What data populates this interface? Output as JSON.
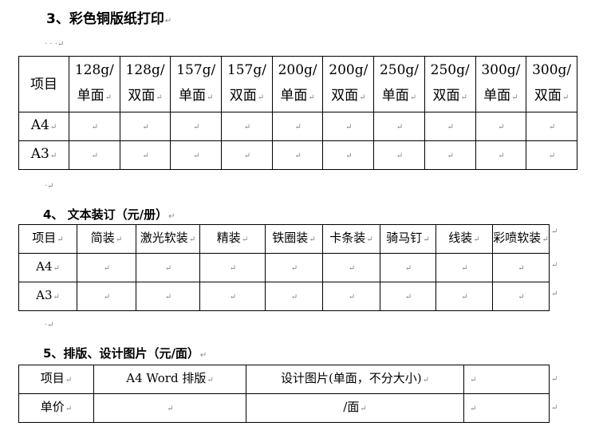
{
  "section3": {
    "heading": "3、彩色铜版纸打印",
    "columns": [
      {
        "weight": "128g/",
        "side": "单面"
      },
      {
        "weight": "128g/",
        "side": "双面"
      },
      {
        "weight": "157g/",
        "side": "单面"
      },
      {
        "weight": "157g/",
        "side": "双面"
      },
      {
        "weight": "200g/",
        "side": "单面"
      },
      {
        "weight": "200g/",
        "side": "双面"
      },
      {
        "weight": "250g/",
        "side": "单面"
      },
      {
        "weight": "250g/",
        "side": "双面"
      },
      {
        "weight": "300g/",
        "side": "单面"
      },
      {
        "weight": "300g/",
        "side": "双面"
      }
    ],
    "header_label": "项目",
    "rows": [
      "A4",
      "A3"
    ]
  },
  "section4": {
    "heading": "4、 文本装订（元/册）",
    "header_label": "项目",
    "columns": [
      "简装",
      "激光软装",
      "精装",
      "铁圈装",
      "卡条装",
      "骑马钉",
      "线装",
      "彩喷软装"
    ],
    "rows": [
      "A4",
      "A3"
    ]
  },
  "section5": {
    "heading": "5、排版、设计图片（元/面）",
    "header": [
      "项目",
      "A4 Word 排版",
      "设计图片(单面，不分大小)",
      ""
    ],
    "row": [
      "单价",
      "",
      "/面",
      ""
    ]
  }
}
